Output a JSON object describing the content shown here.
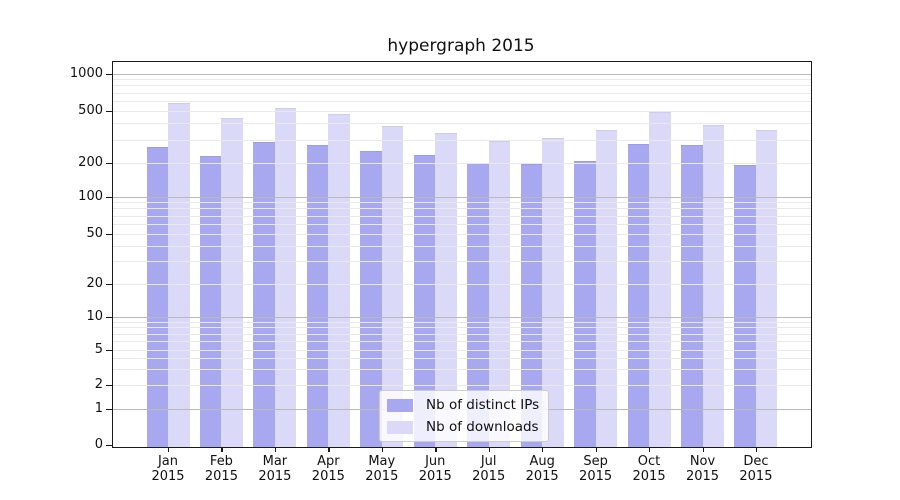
{
  "title": "hypergraph 2015",
  "chart_data": {
    "type": "bar",
    "title": "hypergraph 2015",
    "categories": [
      "Jan 2015",
      "Feb 2015",
      "Mar 2015",
      "Apr 2015",
      "May 2015",
      "Jun 2015",
      "Jul 2015",
      "Aug 2015",
      "Sep 2015",
      "Oct 2015",
      "Nov 2015",
      "Dec 2015"
    ],
    "series": [
      {
        "name": "Nb of distinct IPs",
        "color": "#a8a8f1",
        "edge_color": "#9c9cea",
        "values": [
          265,
          225,
          285,
          273,
          247,
          230,
          196,
          195,
          205,
          276,
          270,
          190
        ]
      },
      {
        "name": "Nb of downloads",
        "color": "#dadaf8",
        "edge_color": "#ccccf0",
        "values": [
          580,
          435,
          525,
          470,
          380,
          337,
          291,
          310,
          355,
          490,
          390,
          355
        ]
      }
    ],
    "yscale": "symlog",
    "y_ticks": [
      0,
      1,
      2,
      5,
      10,
      20,
      50,
      100,
      200,
      500,
      1000
    ],
    "ylim": [
      0,
      1270
    ],
    "grid": true,
    "legend_position": "lower center"
  },
  "legend": {
    "items": [
      "Nb of distinct IPs",
      "Nb of downloads"
    ]
  },
  "colors": {
    "background": "#ffffff",
    "axis": "#1a1a1a",
    "major_grid": "#b9b9b9",
    "minor_grid": "#e9e9e9",
    "text": "#111111",
    "legend_border": "#cccccc"
  }
}
